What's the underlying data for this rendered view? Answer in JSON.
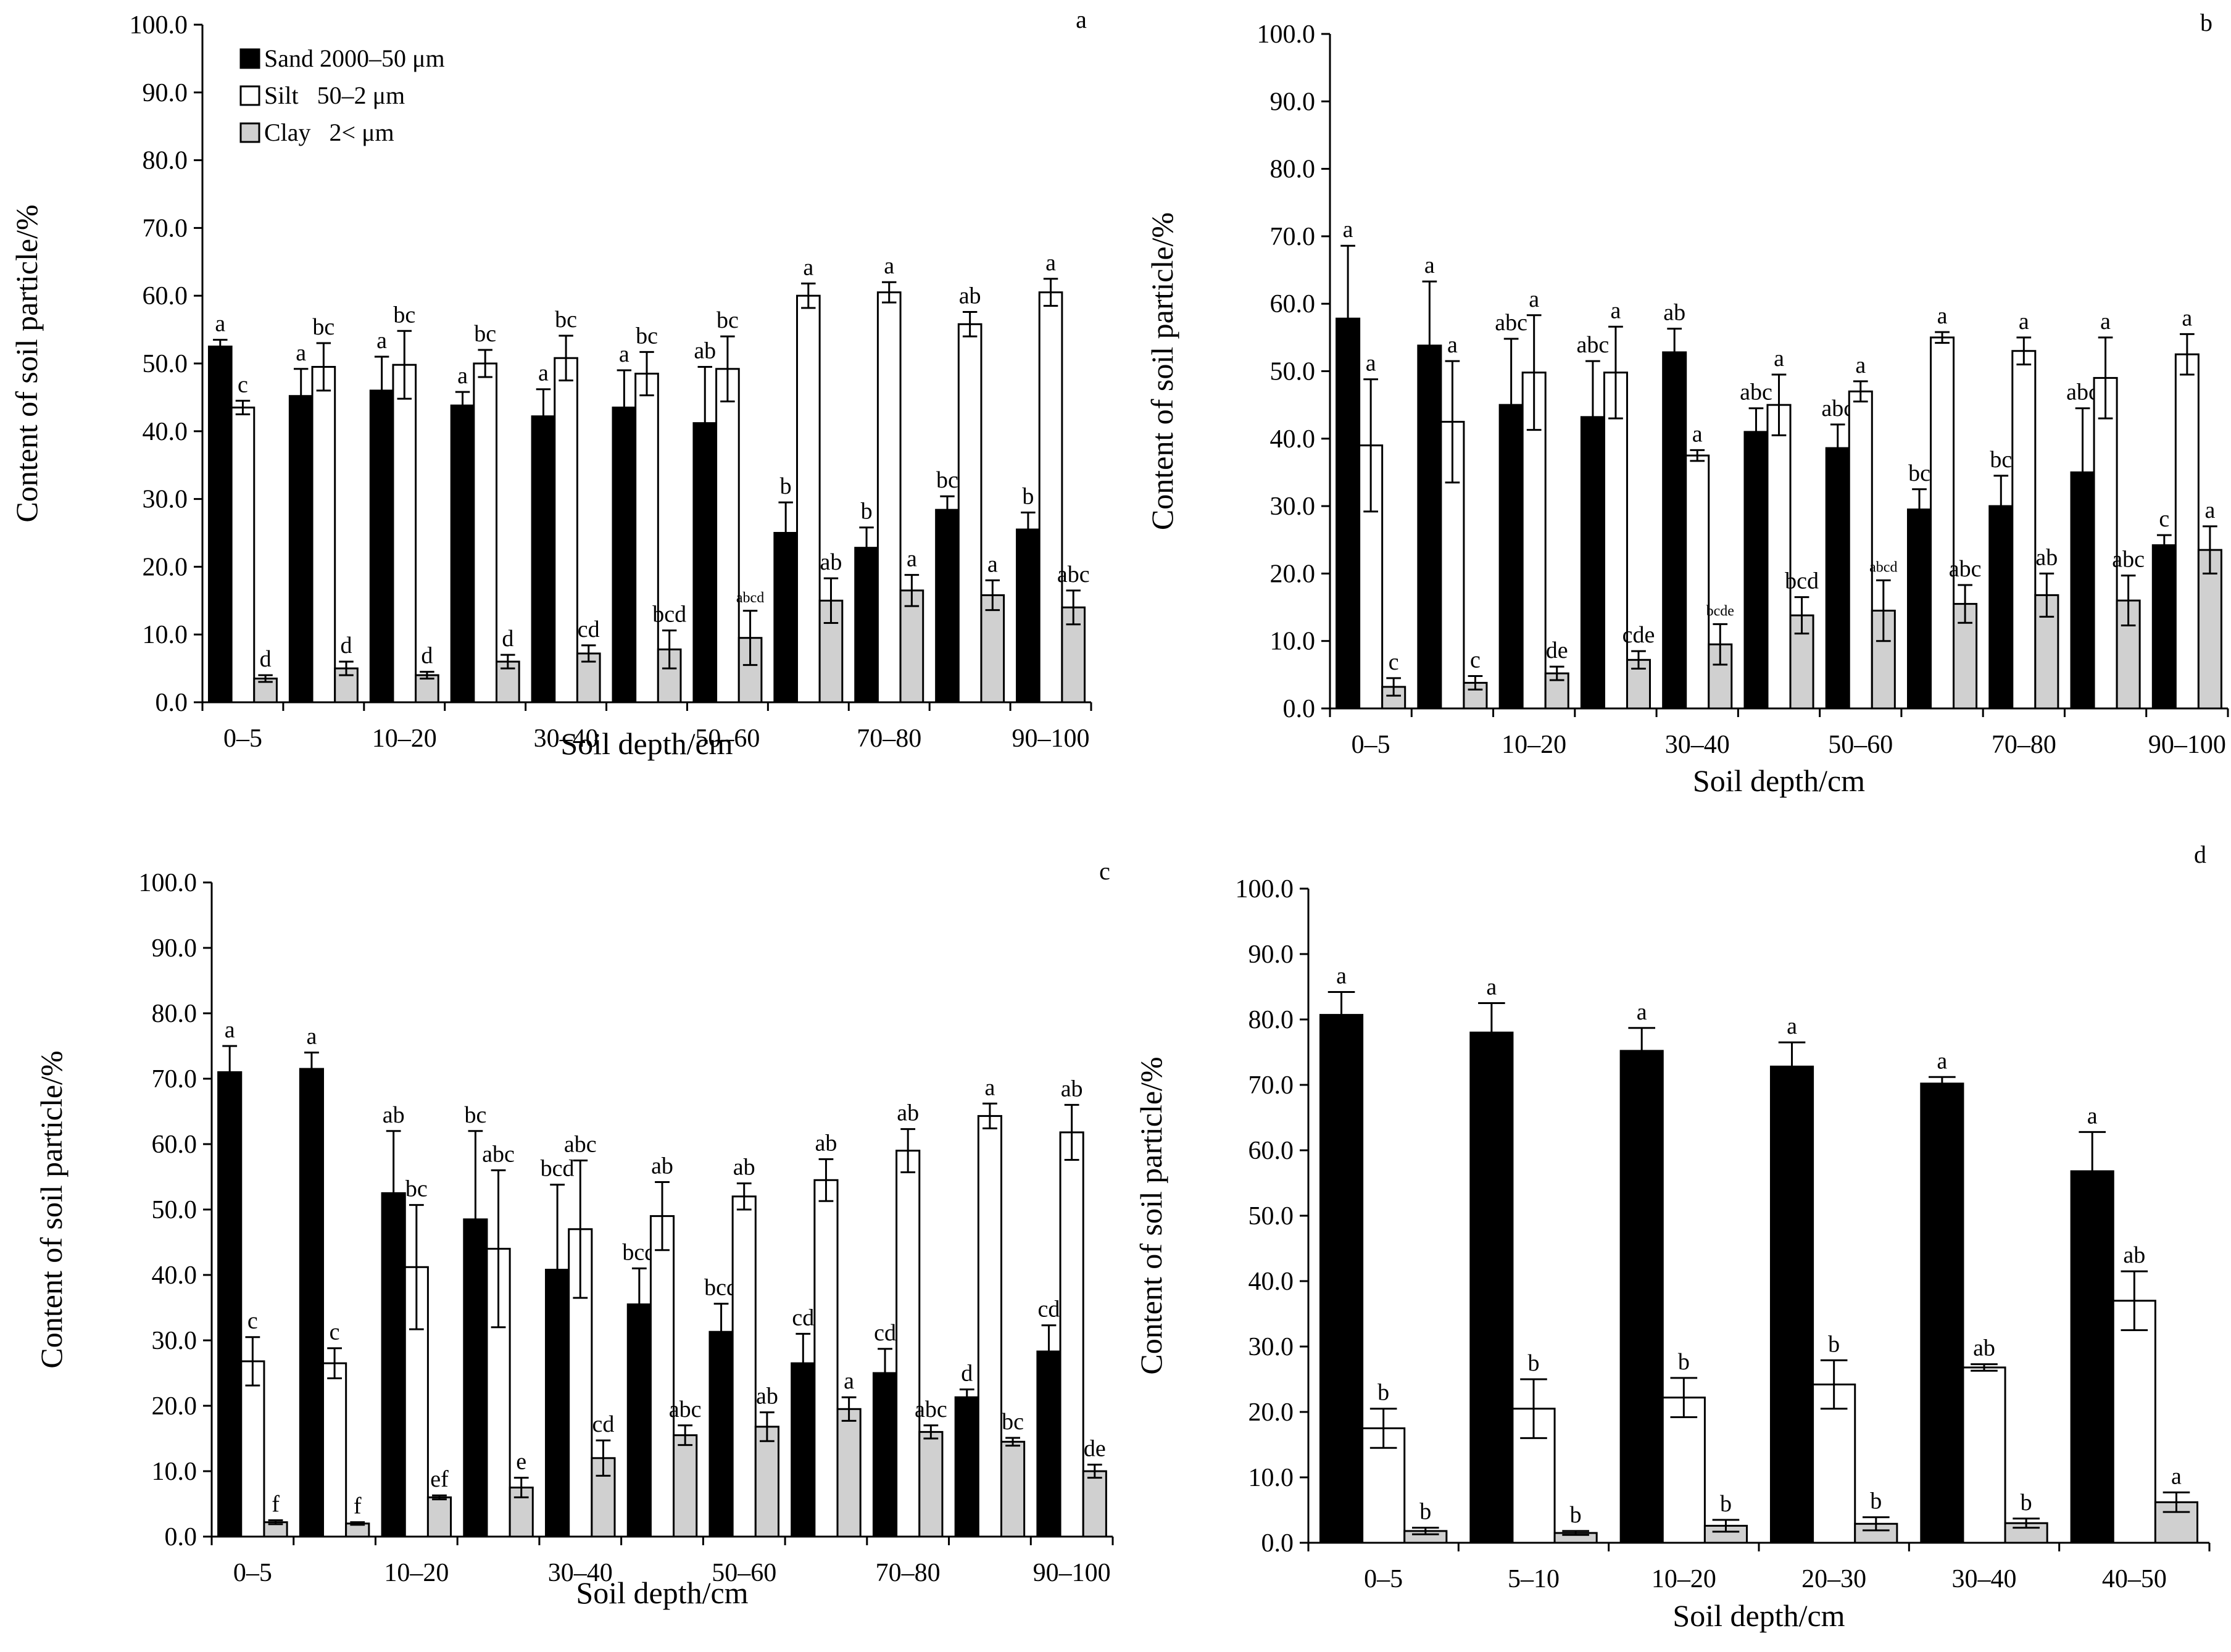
{
  "legend": [
    {
      "name": "Sand 2000–50 μm",
      "color": "#000000"
    },
    {
      "name": "Silt   50–2 μm",
      "color": "#ffffff"
    },
    {
      "name": "Clay   2< μm",
      "color": "#d0d0d0"
    }
  ],
  "chart_data": [
    {
      "type": "bar",
      "panel": "a",
      "ylabel": "Content of soil particle/%",
      "xlabel": "Soil depth/cm",
      "ylim": [
        0,
        100
      ],
      "yticks": [
        "0.0",
        "10.0",
        "20.0",
        "30.0",
        "40.0",
        "50.0",
        "60.0",
        "70.0",
        "80.0",
        "90.0",
        "100.0"
      ],
      "xticklabels": [
        "0–5",
        "",
        "10–20",
        "",
        "30–40",
        "",
        "50–60",
        "",
        "70–80",
        "",
        "90–100"
      ],
      "n_groups": 11,
      "series": [
        {
          "name": "Sand 2000–50 μm",
          "values": [
            52.5,
            45.2,
            46.0,
            43.8,
            42.2,
            43.5,
            41.2,
            25.0,
            22.8,
            28.4,
            25.5
          ],
          "err": [
            1.0,
            4.0,
            5.0,
            2.0,
            4.0,
            5.5,
            8.3,
            4.5,
            3.0,
            2.0,
            2.5
          ],
          "labels": [
            "a",
            "a",
            "a",
            "a",
            "a",
            "a",
            "ab",
            "b",
            "b",
            "bc",
            "b"
          ]
        },
        {
          "name": "Silt   50–2 μm",
          "values": [
            43.5,
            49.5,
            49.8,
            50.0,
            50.8,
            48.5,
            49.2,
            60.0,
            60.5,
            55.8,
            60.5
          ],
          "err": [
            1.0,
            3.5,
            5.0,
            2.0,
            3.3,
            3.2,
            4.8,
            1.8,
            1.5,
            1.8,
            2.0
          ],
          "labels": [
            "c",
            "bc",
            "bc",
            "bc",
            "bc",
            "bc",
            "bc",
            "a",
            "a",
            "ab",
            "a"
          ]
        },
        {
          "name": "Clay   2< μm",
          "values": [
            3.5,
            5.0,
            4.0,
            6.0,
            7.2,
            7.8,
            9.5,
            15.0,
            16.5,
            15.8,
            14.0
          ],
          "err": [
            0.5,
            1.0,
            0.5,
            1.0,
            1.2,
            2.8,
            4.0,
            3.3,
            2.3,
            2.2,
            2.5
          ],
          "labels": [
            "d",
            "d",
            "d",
            "d",
            "cd",
            "bcd",
            "abcd",
            "ab",
            "a",
            "a",
            "abc"
          ]
        }
      ]
    },
    {
      "type": "bar",
      "panel": "b",
      "ylabel": "Content of soil particle/%",
      "xlabel": "Soil depth/cm",
      "ylim": [
        0,
        100
      ],
      "yticks": [
        "0.0",
        "10.0",
        "20.0",
        "30.0",
        "40.0",
        "50.0",
        "60.0",
        "70.0",
        "80.0",
        "90.0",
        "100.0"
      ],
      "xticklabels": [
        "0–5",
        "",
        "10–20",
        "",
        "30–40",
        "",
        "50–60",
        "",
        "70–80",
        "",
        "90–100"
      ],
      "n_groups": 11,
      "series": [
        {
          "name": "Sand 2000–50 μm",
          "values": [
            57.8,
            53.8,
            45.0,
            43.2,
            52.8,
            41.0,
            38.6,
            29.5,
            30.0,
            35.0,
            24.2
          ],
          "err": [
            10.8,
            9.5,
            9.8,
            8.3,
            3.5,
            3.5,
            3.5,
            3.0,
            4.5,
            9.5,
            1.5
          ],
          "labels": [
            "a",
            "a",
            "abc",
            "abc",
            "ab",
            "abc",
            "abc",
            "bc",
            "bc",
            "abc",
            "c"
          ]
        },
        {
          "name": "Silt   50–2 μm",
          "values": [
            39.0,
            42.5,
            49.8,
            49.8,
            37.5,
            45.0,
            47.0,
            55.0,
            53.0,
            49.0,
            52.5
          ],
          "err": [
            9.8,
            9.0,
            8.5,
            6.8,
            0.8,
            4.5,
            1.5,
            0.8,
            2.0,
            6.0,
            3.0
          ],
          "labels": [
            "a",
            "a",
            "a",
            "a",
            "a",
            "a",
            "a",
            "a",
            "a",
            "a",
            "a"
          ]
        },
        {
          "name": "Clay   2< μm",
          "values": [
            3.2,
            3.8,
            5.2,
            7.2,
            9.5,
            13.8,
            14.5,
            15.5,
            16.8,
            16.0,
            23.5
          ],
          "err": [
            1.3,
            1.0,
            1.0,
            1.3,
            3.0,
            2.7,
            4.5,
            2.8,
            3.2,
            3.7,
            3.5
          ],
          "labels": [
            "c",
            "c",
            "de",
            "cde",
            "bcde",
            "bcd",
            "abcd",
            "abc",
            "ab",
            "abc",
            "a"
          ]
        }
      ]
    },
    {
      "type": "bar",
      "panel": "c",
      "ylabel": "Content of soil particle/%",
      "xlabel": "Soil depth/cm",
      "ylim": [
        0,
        100
      ],
      "yticks": [
        "0.0",
        "10.0",
        "20.0",
        "30.0",
        "40.0",
        "50.0",
        "60.0",
        "70.0",
        "80.0",
        "90.0",
        "100.0"
      ],
      "xticklabels": [
        "0–5",
        "",
        "10–20",
        "",
        "30–40",
        "",
        "50–60",
        "",
        "70–80",
        "",
        "90–100"
      ],
      "n_groups": 11,
      "series": [
        {
          "name": "Sand 2000–50 μm",
          "values": [
            71.0,
            71.5,
            52.5,
            48.5,
            40.8,
            35.5,
            31.3,
            26.5,
            25.0,
            21.3,
            28.3
          ],
          "err": [
            4.0,
            2.5,
            9.5,
            13.5,
            13.0,
            5.5,
            4.3,
            4.5,
            3.7,
            1.2,
            4.0
          ],
          "labels": [
            "a",
            "a",
            "ab",
            "bc",
            "bcd",
            "bcd",
            "bcd",
            "cd",
            "cd",
            "d",
            "cd"
          ]
        },
        {
          "name": "Silt   50–2 μm",
          "values": [
            26.8,
            26.5,
            41.2,
            44.0,
            47.0,
            49.0,
            52.0,
            54.5,
            59.0,
            64.3,
            61.8
          ],
          "err": [
            3.7,
            2.3,
            9.5,
            12.0,
            10.5,
            5.2,
            2.0,
            3.2,
            3.3,
            1.9,
            4.2
          ],
          "labels": [
            "c",
            "c",
            "bc",
            "abc",
            "abc",
            "ab",
            "ab",
            "ab",
            "ab",
            "a",
            "ab"
          ]
        },
        {
          "name": "Clay   2< μm",
          "values": [
            2.2,
            2.0,
            6.0,
            7.5,
            12.0,
            15.5,
            16.8,
            19.5,
            16.0,
            14.5,
            10.0
          ],
          "err": [
            0.3,
            0.2,
            0.3,
            1.5,
            2.7,
            1.5,
            2.2,
            1.8,
            1.0,
            0.6,
            1.0
          ],
          "labels": [
            "f",
            "f",
            "ef",
            "e",
            "cd",
            "abc",
            "ab",
            "a",
            "abc",
            "bc",
            "de"
          ]
        }
      ]
    },
    {
      "type": "bar",
      "panel": "d",
      "ylabel": "Content of soil particle/%",
      "xlabel": "Soil depth/cm",
      "ylim": [
        0,
        100
      ],
      "yticks": [
        "0.0",
        "10.0",
        "20.0",
        "30.0",
        "40.0",
        "50.0",
        "60.0",
        "70.0",
        "80.0",
        "90.0",
        "100.0"
      ],
      "xticklabels": [
        "0–5",
        "5–10",
        "10–20",
        "20–30",
        "30–40",
        "40–50"
      ],
      "n_groups": 6,
      "series": [
        {
          "name": "Sand 2000–50 μm",
          "values": [
            80.7,
            78.0,
            75.2,
            72.8,
            70.2,
            56.8
          ],
          "err": [
            3.5,
            4.5,
            3.5,
            3.7,
            1.0,
            6.0
          ],
          "labels": [
            "a",
            "a",
            "a",
            "a",
            "a",
            "a"
          ]
        },
        {
          "name": "Silt   50–2 μm",
          "values": [
            17.5,
            20.5,
            22.2,
            24.2,
            26.8,
            37.0
          ],
          "err": [
            3.0,
            4.5,
            3.0,
            3.7,
            0.5,
            4.5
          ],
          "labels": [
            "b",
            "b",
            "b",
            "b",
            "ab",
            "ab"
          ]
        },
        {
          "name": "Clay   2< μm",
          "values": [
            1.8,
            1.5,
            2.6,
            2.9,
            3.0,
            6.2
          ],
          "err": [
            0.5,
            0.3,
            0.9,
            1.0,
            0.7,
            1.5
          ],
          "labels": [
            "b",
            "b",
            "b",
            "b",
            "b",
            "a"
          ]
        }
      ]
    }
  ]
}
